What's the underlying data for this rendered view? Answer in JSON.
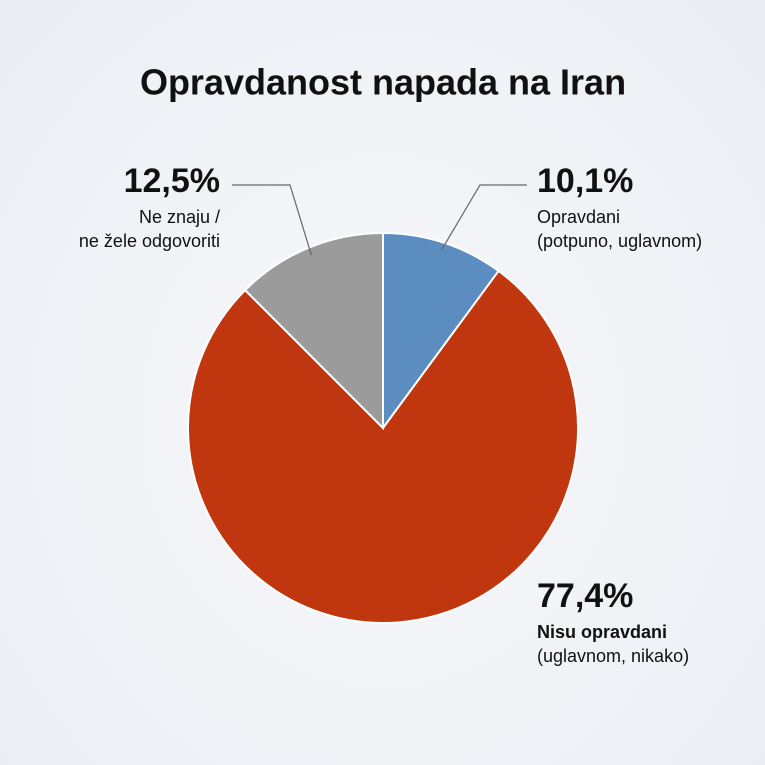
{
  "chart_data": {
    "type": "pie",
    "title": "Opravdanost napada na Iran",
    "categories": [
      [
        "Opravdani",
        "(potpuno, uglavnom)"
      ],
      [
        "Nisu opravdani",
        "(uglavnom, nikako)"
      ],
      [
        "Ne znaju /",
        "ne žele odgovoriti"
      ]
    ],
    "values": [
      10.1,
      77.4,
      12.5
    ],
    "value_labels": [
      "10,1%",
      "77,4%",
      "12,5%"
    ],
    "colors": [
      "#5b8dc0",
      "#c0360e",
      "#9b9b9b"
    ],
    "bold_labels": [
      false,
      true,
      false
    ]
  }
}
